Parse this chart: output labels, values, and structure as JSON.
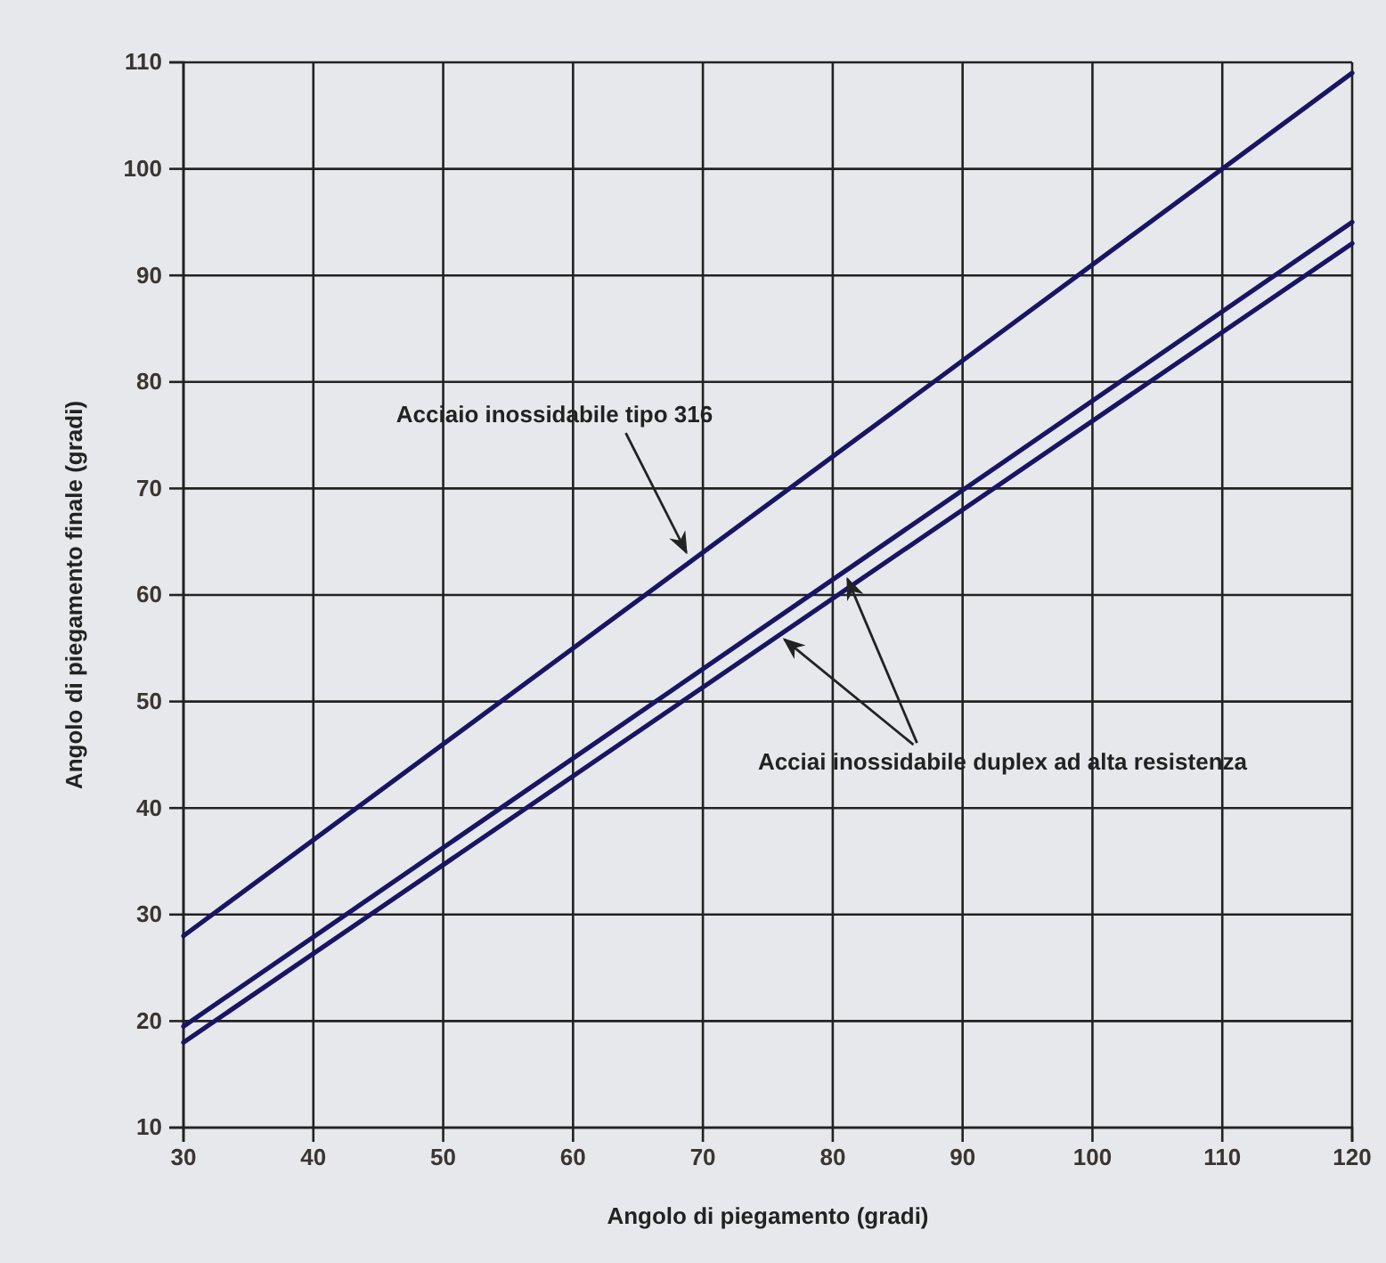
{
  "chart_data": {
    "type": "line",
    "xlabel": "Angolo di piegamento (gradi)",
    "ylabel": "Angolo di piegamento finale (gradi)",
    "x": [
      30,
      120
    ],
    "series": [
      {
        "color": "#1a1464",
        "values": [
          28,
          109
        ]
      },
      {
        "color": "#1a1464",
        "values": [
          19.5,
          95
        ]
      },
      {
        "color": "#1a1464",
        "values": [
          18,
          93
        ]
      }
    ],
    "xlim": [
      30,
      120
    ],
    "xticks": [
      30,
      40,
      50,
      60,
      70,
      80,
      90,
      100,
      110,
      120
    ],
    "ylim": [
      10,
      110
    ],
    "yticks": [
      10,
      20,
      30,
      40,
      50,
      60,
      70,
      80,
      90,
      100,
      110
    ],
    "grid": true,
    "marker": "none",
    "line_style": "solid",
    "annotations": [
      {
        "text": "Acciaio inossidabile tipo 316",
        "x": 69,
        "y": 63.5
      },
      {
        "text": "Acciai inossidabile duplex ad alta resistenza",
        "x": 81,
        "y": 62
      }
    ]
  }
}
